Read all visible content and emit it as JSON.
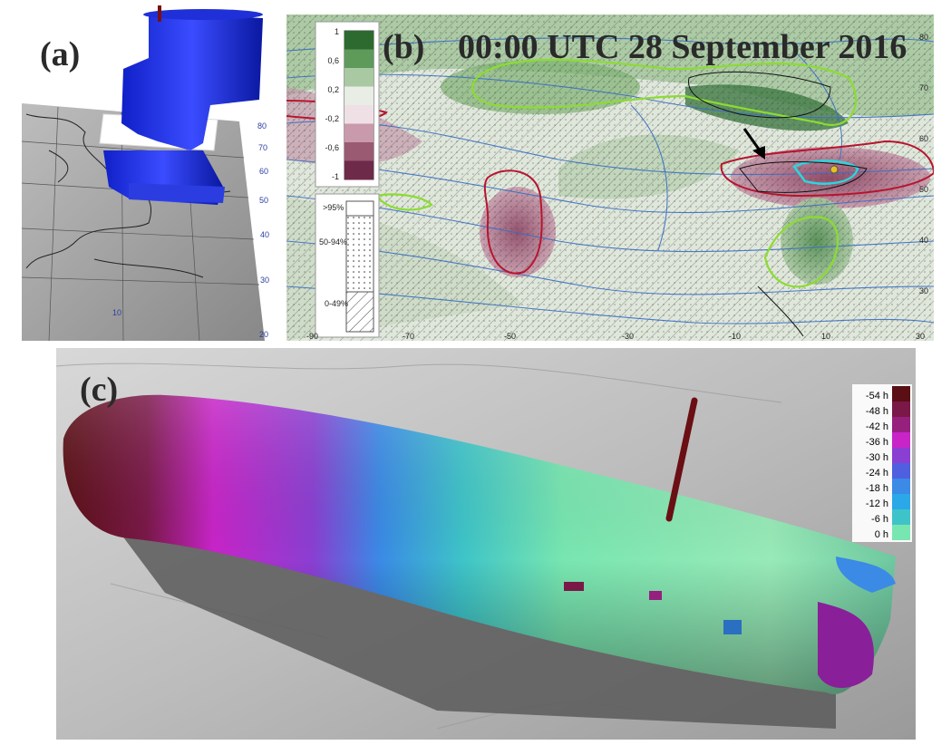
{
  "panel_a": {
    "label": "(a)",
    "lat_ticks": [
      "80",
      "70",
      "60",
      "50",
      "40",
      "30",
      "20"
    ],
    "lon_ticks": [
      "10"
    ]
  },
  "panel_b": {
    "label": "(b)",
    "title": "00:00 UTC 28 September 2016",
    "colorbar": {
      "ticks": [
        "1",
        "0,6",
        "0,2",
        "-0,2",
        "-0,6",
        "-1"
      ],
      "colors": [
        "#2d6a2f",
        "#5e9a5a",
        "#a8c9a2",
        "#e8ede5",
        "#efe0e6",
        "#c89aab",
        "#9a5a72",
        "#6e2a49"
      ]
    },
    "hatch_legend": {
      "labels": [
        ">95%",
        "50-94%",
        "0-49%"
      ]
    },
    "x_ticks": [
      "-90",
      "-70",
      "-50",
      "-30",
      "-10",
      "10",
      "30"
    ],
    "y_ticks": [
      "80",
      "70",
      "60",
      "50",
      "40",
      "30"
    ]
  },
  "panel_c": {
    "label": "(c)",
    "legend": {
      "labels": [
        "-54 h",
        "-48 h",
        "-42 h",
        "-36 h",
        "-30 h",
        "-24 h",
        "-18 h",
        "-12 h",
        "-6 h",
        "0 h"
      ],
      "colors": [
        "#5a0f14",
        "#7a1848",
        "#96207e",
        "#c824c8",
        "#8a3fd2",
        "#4f5fe0",
        "#3a8ae6",
        "#2aa8e8",
        "#3ec4c8",
        "#78e6b0"
      ]
    }
  }
}
